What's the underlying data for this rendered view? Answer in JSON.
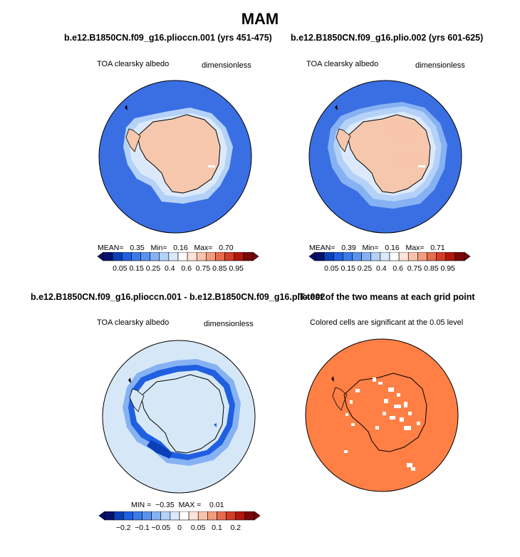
{
  "figure": {
    "title": "MAM"
  },
  "panels": {
    "p1": {
      "title": "b.e12.B1850CN.f09_g16.plioccn.001 (yrs 451-475)",
      "left_label": "TOA clearsky albedo",
      "right_label": "dimensionless",
      "stats": {
        "mean_label": "MEAN=",
        "mean": "0.35",
        "min_label": "Min=",
        "min": "0.16",
        "max_label": "Max=",
        "max": "0.70"
      },
      "colorbar_colors": [
        "#08106b",
        "#0a3fb8",
        "#1f5fe0",
        "#3b7be8",
        "#5a93ef",
        "#86b2f3",
        "#b4d1f8",
        "#dbe9fb",
        "#ffffff",
        "#fde3d8",
        "#f9c3ab",
        "#f39c7c",
        "#e86b4c",
        "#d33c26",
        "#b0180f",
        "#7a0808"
      ],
      "colorbar_labels": [
        "0.05",
        "0.15",
        "0.25",
        "0.4",
        "0.6",
        "0.75",
        "0.85",
        "0.95"
      ]
    },
    "p2": {
      "title": "b.e12.B1850CN.f09_g16.plio.002 (yrs 601-625)",
      "left_label": "TOA clearsky albedo",
      "right_label": "dimensionless",
      "stats": {
        "mean_label": "MEAN=",
        "mean": "0.39",
        "min_label": "Min=",
        "min": "0.16",
        "max_label": "Max=",
        "max": "0.71"
      },
      "colorbar_colors": [
        "#08106b",
        "#0a3fb8",
        "#1f5fe0",
        "#3b7be8",
        "#5a93ef",
        "#86b2f3",
        "#b4d1f8",
        "#dbe9fb",
        "#ffffff",
        "#fde3d8",
        "#f9c3ab",
        "#f39c7c",
        "#e86b4c",
        "#d33c26",
        "#b0180f",
        "#7a0808"
      ],
      "colorbar_labels": [
        "0.05",
        "0.15",
        "0.25",
        "0.4",
        "0.6",
        "0.75",
        "0.85",
        "0.95"
      ]
    },
    "p3": {
      "title": "b.e12.B1850CN.f09_g16.plioccn.001 - b.e12.B1850CN.f09_g16.plio.002",
      "left_label": "TOA clearsky albedo",
      "right_label": "dimensionless",
      "stats": {
        "min_label": "MIN =",
        "min": "−0.35",
        "max_label": "MAX =",
        "max": "0.01"
      },
      "colorbar_colors": [
        "#08106b",
        "#0a3fb8",
        "#1f5fe0",
        "#3b7be8",
        "#5a93ef",
        "#86b2f3",
        "#b4d1f8",
        "#dbe9fb",
        "#ffffff",
        "#fde3d8",
        "#f9c3ab",
        "#f39c7c",
        "#e86b4c",
        "#d33c26",
        "#b0180f",
        "#7a0808"
      ],
      "colorbar_labels": [
        "−0.2",
        "−0.1",
        "−0.05",
        "0",
        "0.05",
        "0.1",
        "0.2"
      ]
    },
    "p4": {
      "title": "T-test of the two means at each grid point",
      "left_label": "Colored cells are significant at the 0.05 level"
    }
  },
  "colors": {
    "ocean_blue": "#3a6fe3",
    "land_salmon": "#f6c7ad",
    "diff_background": "#d6e8f8",
    "significance_orange": "#ff7f45"
  }
}
